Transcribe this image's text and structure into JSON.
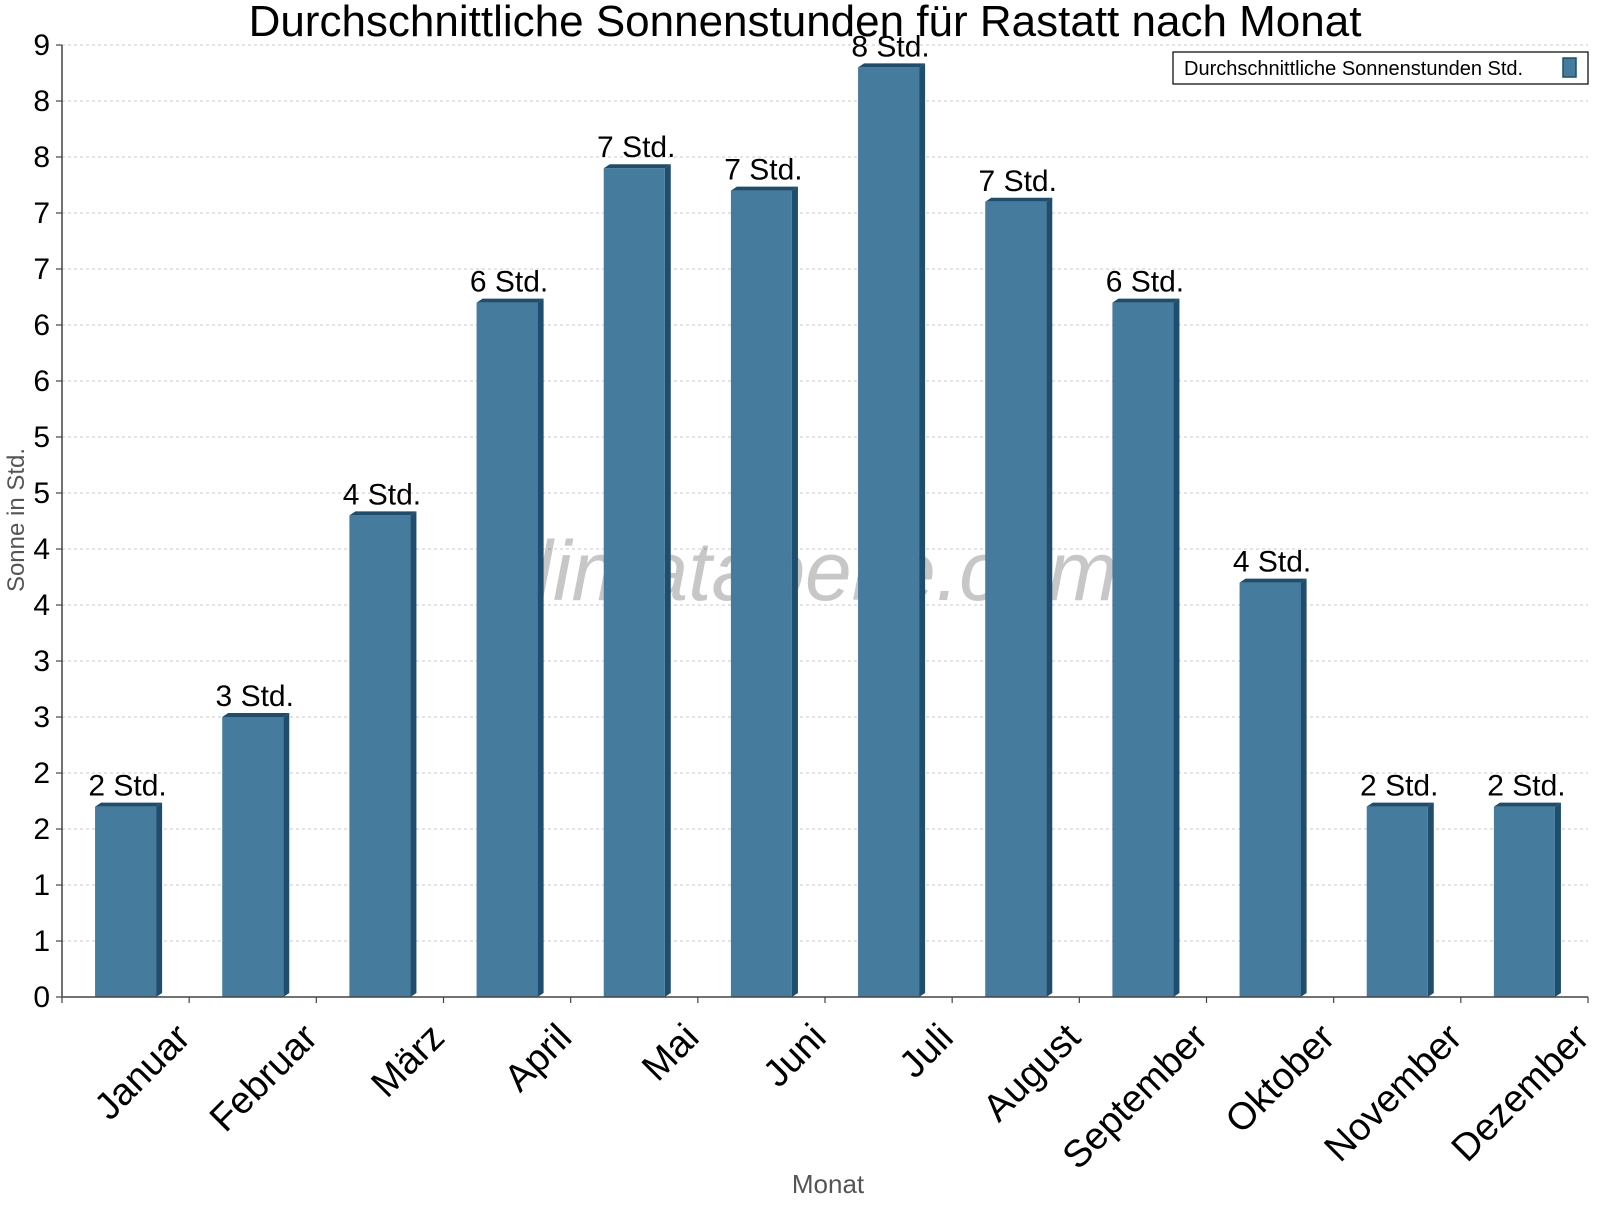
{
  "chart_data": {
    "type": "bar",
    "title": "Durchschnittliche Sonnenstunden für Rastatt nach Monat",
    "xlabel": "Monat",
    "ylabel": "Sonne in Std.",
    "categories": [
      "Januar",
      "Februar",
      "März",
      "April",
      "Mai",
      "Juni",
      "Juli",
      "August",
      "September",
      "Oktober",
      "November",
      "Dezember"
    ],
    "series": [
      {
        "name": "Durchschnittliche Sonnenstunden Std.",
        "values": [
          1.7,
          2.5,
          4.3,
          6.2,
          7.4,
          7.2,
          8.3,
          7.1,
          6.2,
          3.7,
          1.7,
          1.7
        ],
        "labels": [
          "2 Std.",
          "3 Std.",
          "4 Std.",
          "6 Std.",
          "7 Std.",
          "7 Std.",
          "8 Std.",
          "7 Std.",
          "6 Std.",
          "4 Std.",
          "2 Std.",
          "2 Std."
        ],
        "color": "#457B9D"
      }
    ],
    "ylim": [
      0,
      8.5
    ],
    "yticks": [
      0,
      0.5,
      1,
      1.5,
      2,
      2.5,
      3,
      3.5,
      4,
      4.5,
      5,
      5.5,
      6,
      6.5,
      7,
      7.5,
      8,
      8.5
    ],
    "ytick_labels": [
      "0",
      "1",
      "1",
      "2",
      "2",
      "3",
      "3",
      "4",
      "4",
      "5",
      "5",
      "6",
      "6",
      "7",
      "7",
      "8",
      "8",
      "9"
    ],
    "grid": true,
    "legend_position": "top-right",
    "watermark": "klimatabelle.com",
    "colors": {
      "bar": "#457B9D",
      "bar_side": "#1E4D6E",
      "grid": "#c8c8c8",
      "axis_label": "#555555"
    }
  }
}
